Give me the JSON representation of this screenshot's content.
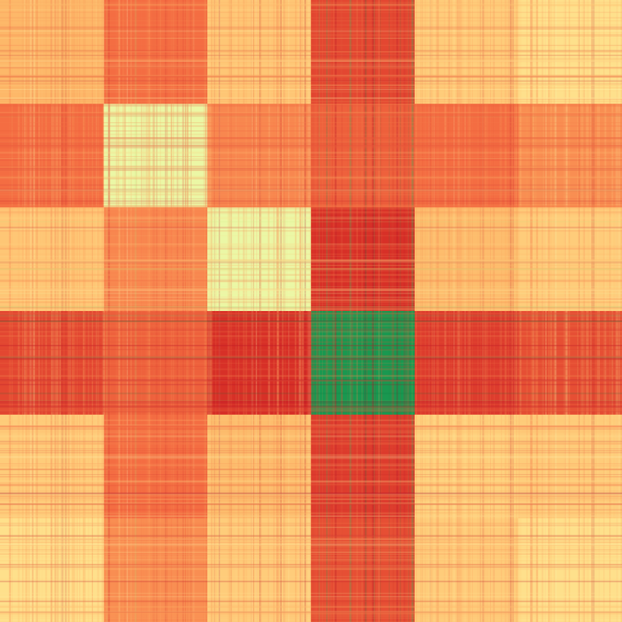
{
  "chart_data": {
    "type": "heatmap",
    "title": "",
    "xlabel": "",
    "ylabel": "",
    "legend": "none",
    "grid": false,
    "colormap": "RdYlGn",
    "palette": [
      "#a50026",
      "#d73027",
      "#f46d43",
      "#fdae61",
      "#fee08b",
      "#ffffbf",
      "#d9ef8b",
      "#a6d96a",
      "#66bd63",
      "#1a9850",
      "#006837"
    ],
    "value_range": [
      0,
      1
    ],
    "n_blocks": 6,
    "block_values": [
      [
        0.32,
        0.2,
        0.35,
        0.14,
        0.36,
        0.4
      ],
      [
        0.2,
        0.55,
        0.24,
        0.18,
        0.2,
        0.25
      ],
      [
        0.35,
        0.24,
        0.55,
        0.1,
        0.33,
        0.36
      ],
      [
        0.14,
        0.18,
        0.1,
        0.9,
        0.12,
        0.15
      ],
      [
        0.36,
        0.2,
        0.33,
        0.12,
        0.37,
        0.36
      ],
      [
        0.4,
        0.25,
        0.36,
        0.15,
        0.36,
        0.4
      ]
    ],
    "block_order_top_to_bottom": [
      0,
      1,
      2,
      3,
      4,
      5
    ]
  }
}
